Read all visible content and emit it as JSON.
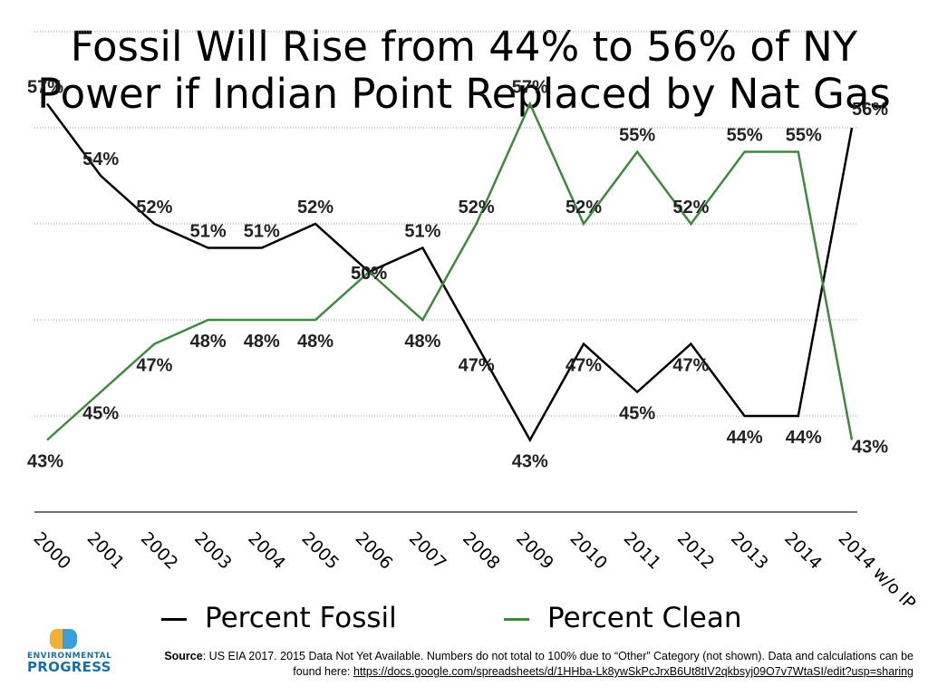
{
  "title_line1": "Fossil Will Rise from 44% to 56% of NY",
  "title_line2": "Power if Indian Point Replaced by Nat Gas",
  "chart_data": {
    "type": "line",
    "categories": [
      "2000",
      "2001",
      "2002",
      "2003",
      "2004",
      "2005",
      "2006",
      "2007",
      "2008",
      "2009",
      "2010",
      "2011",
      "2012",
      "2013",
      "2014",
      "2014 w/o IP"
    ],
    "series": [
      {
        "name": "Percent Fossil",
        "color": "#000000",
        "values": [
          57,
          54,
          52,
          51,
          51,
          52,
          50,
          51,
          47,
          43,
          47,
          45,
          47,
          44,
          44,
          56
        ],
        "labels": [
          "57%",
          "54%",
          "52%",
          "51%",
          "51%",
          "52%",
          "50%",
          "51%",
          "47%",
          "43%",
          "47%",
          "45%",
          "47%",
          "44%",
          "44%",
          "56%"
        ]
      },
      {
        "name": "Percent Clean",
        "color": "#3d8a3d",
        "values": [
          43,
          45,
          47,
          48,
          48,
          48,
          50,
          48,
          52,
          57,
          52,
          55,
          52,
          55,
          55,
          43
        ],
        "labels": [
          "43%",
          "45%",
          "47%",
          "48%",
          "48%",
          "48%",
          "50%",
          "48%",
          "52%",
          "57%",
          "52%",
          "55%",
          "52%",
          "55%",
          "55%",
          "43%"
        ]
      }
    ],
    "ylim": [
      40,
      60
    ],
    "grid": true,
    "legend_position": "bottom"
  },
  "legend": {
    "fossil": "Percent Fossil",
    "clean": "Percent Clean"
  },
  "logo": {
    "line1": "ENVIRONMENTAL",
    "line2": "PROGRESS"
  },
  "source": {
    "label": "Source",
    "text": ": US EIA 2017. 2015 Data Not Yet Available. Numbers do not total to 100% due to “Other” Category (not shown). Data and calculations can be found here: ",
    "link": "https://docs.google.com/spreadsheets/d/1HHba-Lk8ywSkPcJrxB6Ut8tIV2qkbsyj09O7v7WtaSI/edit?usp=sharing"
  }
}
